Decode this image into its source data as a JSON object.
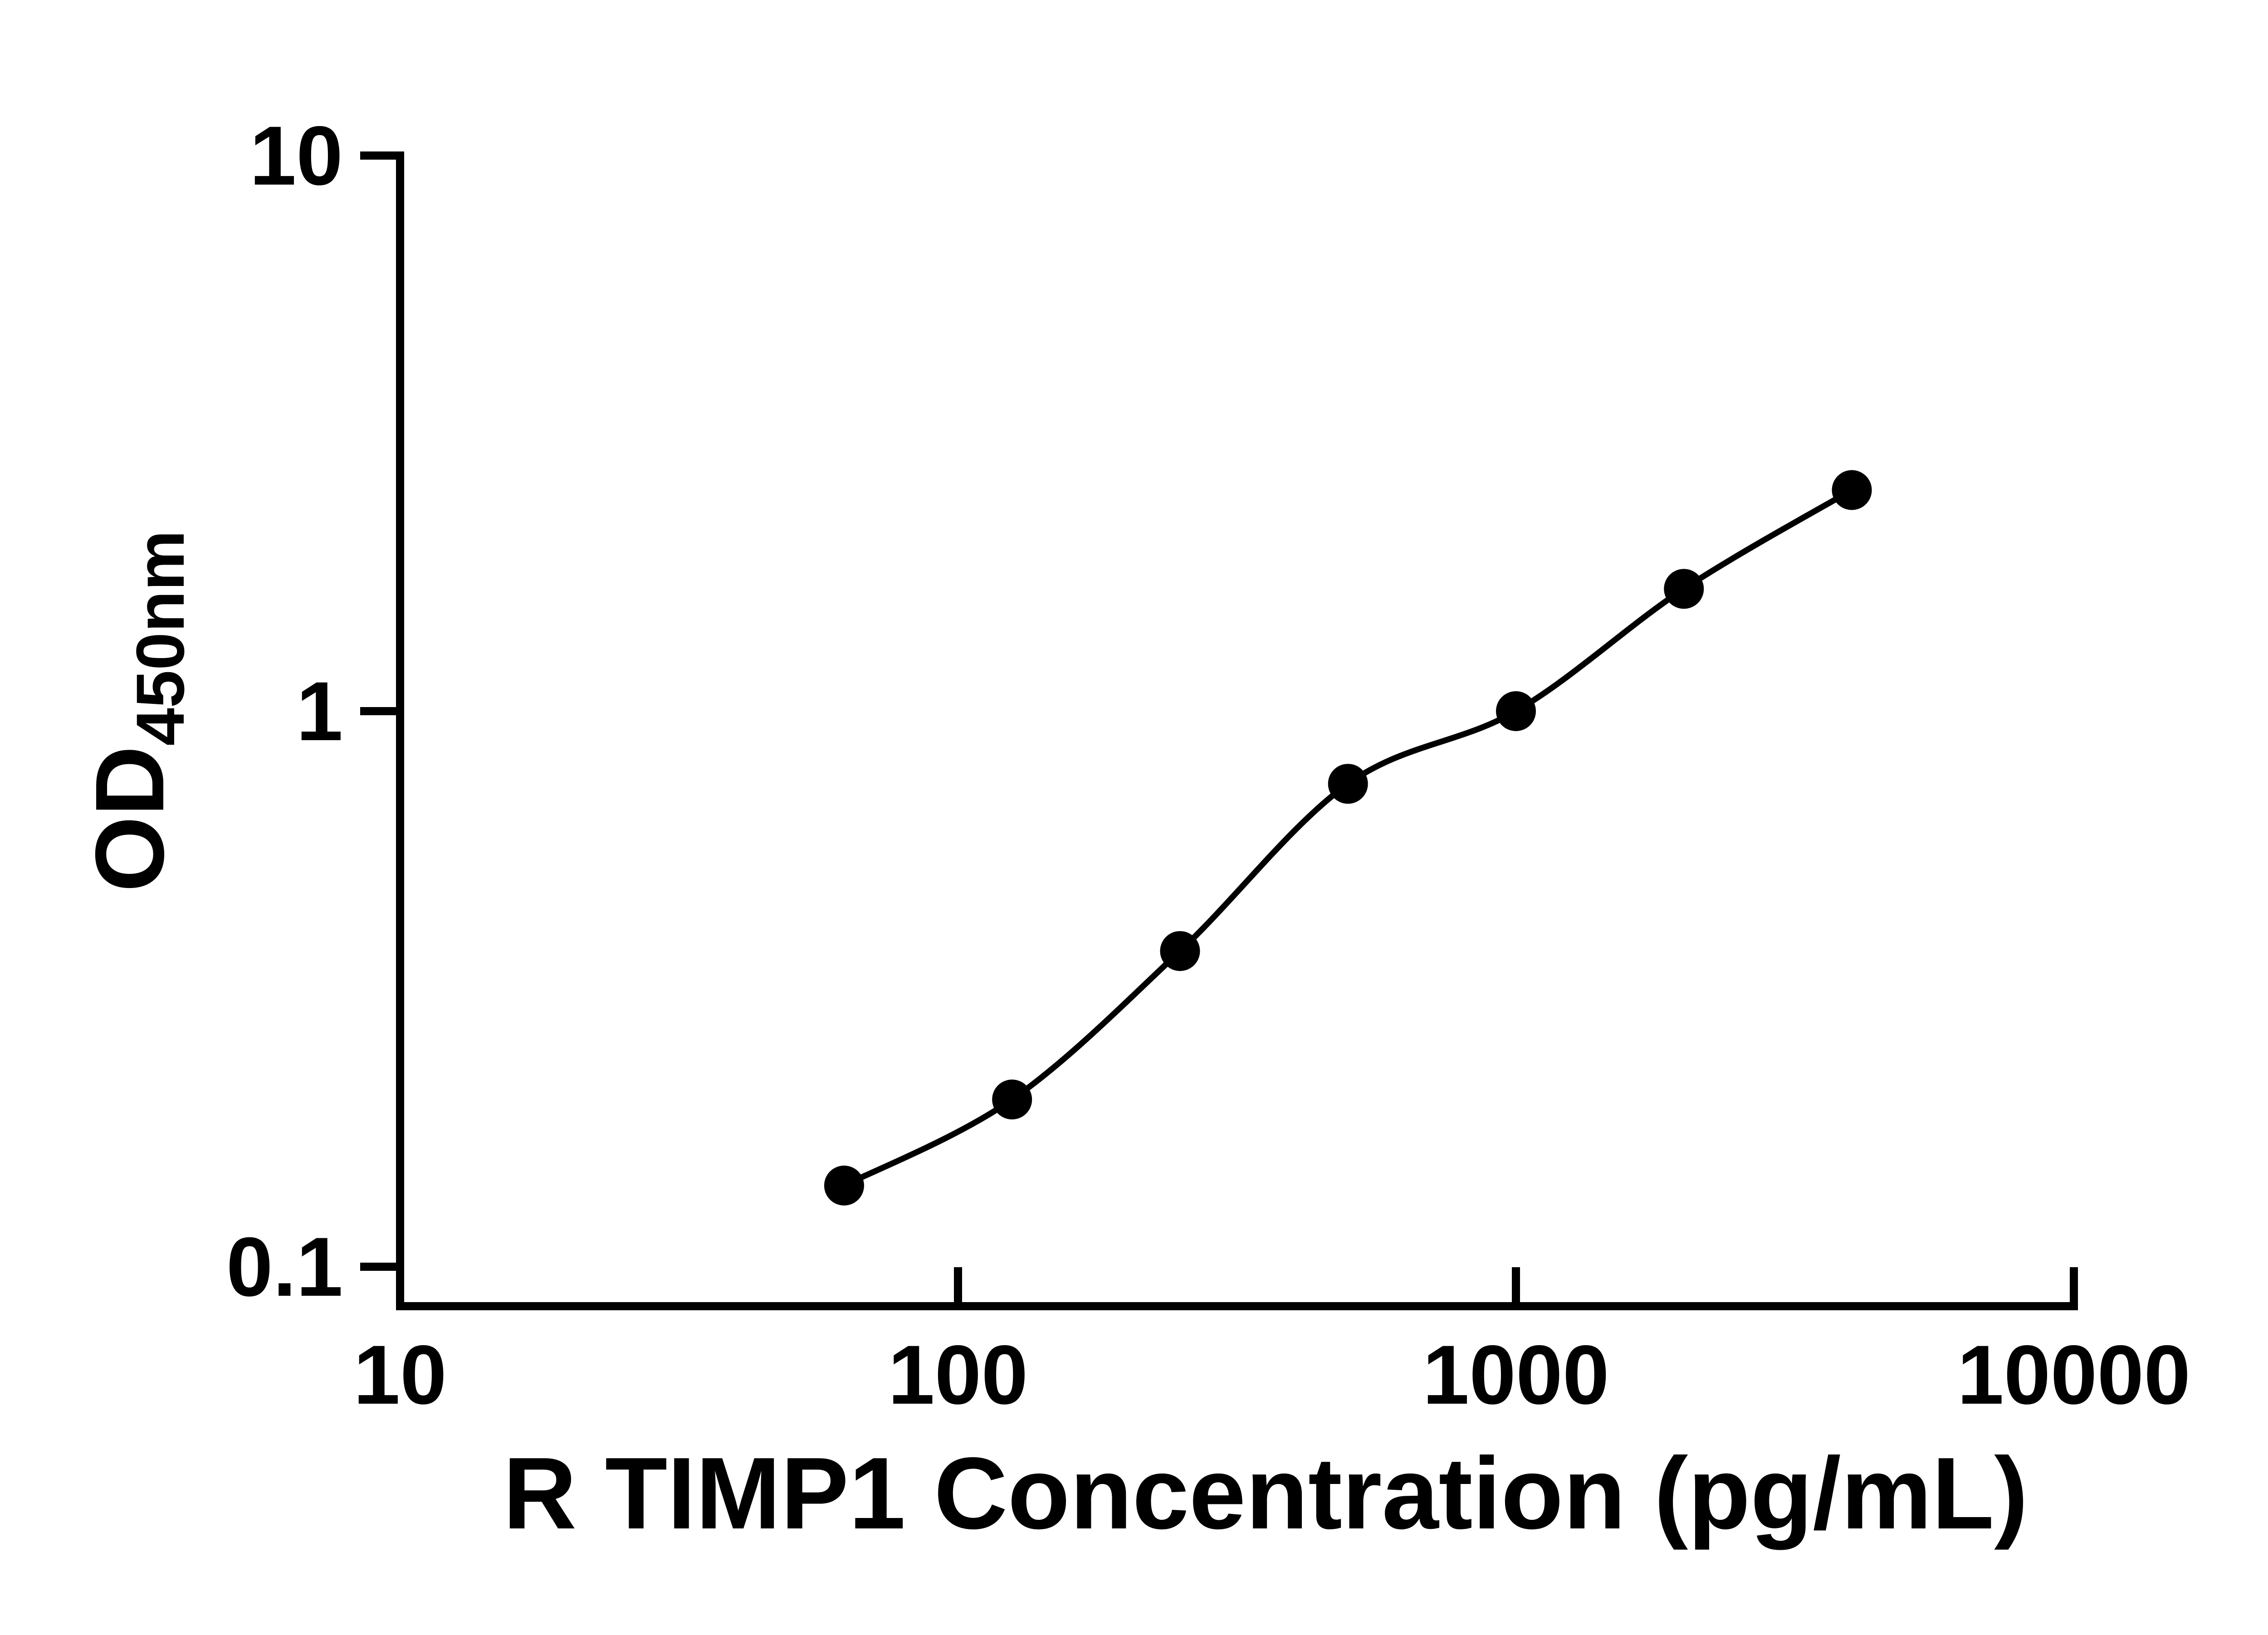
{
  "chart_data": {
    "type": "scatter",
    "title": "",
    "xlabel": "R TIMP1 Concentration (pg/mL)",
    "ylabel_main": "OD",
    "ylabel_sub": "450nm",
    "x_scale": "log",
    "y_scale": "log",
    "xlim": [
      10,
      10000
    ],
    "ylim": [
      0.1,
      10
    ],
    "x_ticks": [
      10,
      100,
      1000,
      10000
    ],
    "x_tick_labels": [
      "10",
      "100",
      "1000",
      "10000"
    ],
    "y_ticks": [
      0.1,
      1,
      10
    ],
    "y_tick_labels": [
      "0.1",
      "1",
      "10"
    ],
    "grid": false,
    "legend": "none",
    "series": [
      {
        "marker": "filled-circle",
        "line": "smooth-fit-curve",
        "color": "#000000",
        "x": [
          62.5,
          125,
          250,
          500,
          1000,
          2000,
          4000
        ],
        "y": [
          0.14,
          0.2,
          0.37,
          0.74,
          1.0,
          1.66,
          2.5
        ]
      }
    ]
  },
  "colors": {
    "background": "#ffffff",
    "axis": "#000000",
    "marker": "#000000",
    "curve": "#000000"
  }
}
